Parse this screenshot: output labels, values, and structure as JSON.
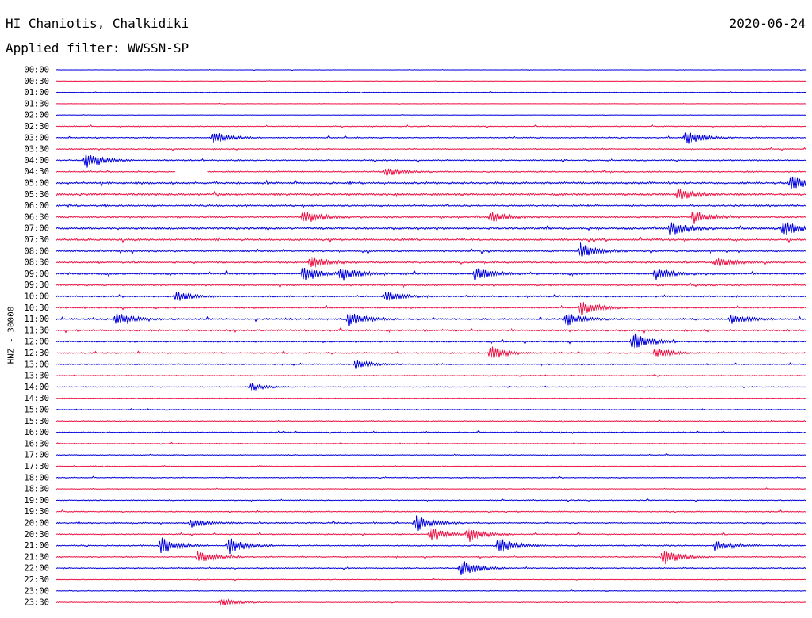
{
  "header": {
    "station": "HI Chaniotis, Chalkidiki",
    "filter": "Applied filter: WWSSN-SP",
    "date": "2020-06-24"
  },
  "colors": {
    "trace_a": "#0000dd",
    "trace_b": "#ee1144",
    "text": "#000000"
  },
  "chart_data": {
    "type": "line",
    "title": "HI Chaniotis, Chalkidiki",
    "subtitle": "Applied filter: WWSSN-SP",
    "ylabel": "HNZ - 30000",
    "xlabel": "",
    "grid": false,
    "legend": "none",
    "trace_colors": [
      "#0000dd",
      "#ee1144"
    ],
    "rows": [
      "00:00",
      "00:30",
      "01:00",
      "01:30",
      "02:00",
      "02:30",
      "03:00",
      "03:30",
      "04:00",
      "04:30",
      "05:00",
      "05:30",
      "06:00",
      "06:30",
      "07:00",
      "07:30",
      "08:00",
      "08:30",
      "09:00",
      "09:30",
      "10:00",
      "10:30",
      "11:00",
      "11:30",
      "12:00",
      "12:30",
      "13:00",
      "13:30",
      "14:00",
      "14:30",
      "15:00",
      "15:30",
      "16:00",
      "16:30",
      "17:00",
      "17:30",
      "18:00",
      "18:30",
      "19:00",
      "19:30",
      "20:00",
      "20:30",
      "21:00",
      "21:30",
      "22:00",
      "22:30",
      "23:00",
      "23:30"
    ],
    "row_noise_level": [
      0.1,
      0.1,
      0.15,
      0.1,
      0.1,
      0.25,
      0.3,
      0.3,
      0.35,
      0.35,
      0.55,
      0.6,
      0.45,
      0.5,
      0.6,
      0.5,
      0.45,
      0.45,
      0.5,
      0.45,
      0.4,
      0.4,
      0.45,
      0.45,
      0.4,
      0.35,
      0.3,
      0.25,
      0.2,
      0.2,
      0.25,
      0.25,
      0.25,
      0.2,
      0.2,
      0.2,
      0.25,
      0.2,
      0.25,
      0.3,
      0.35,
      0.3,
      0.35,
      0.3,
      0.3,
      0.2,
      0.2,
      0.2
    ],
    "events": [
      {
        "row": 6,
        "t": 0.21,
        "amp": 0.7
      },
      {
        "row": 6,
        "t": 0.84,
        "amp": 0.9
      },
      {
        "row": 8,
        "t": 0.04,
        "amp": 0.9
      },
      {
        "row": 9,
        "t": 0.44,
        "amp": 0.5
      },
      {
        "row": 10,
        "t": 0.98,
        "amp": 0.9
      },
      {
        "row": 11,
        "t": 0.83,
        "amp": 0.7
      },
      {
        "row": 13,
        "t": 0.33,
        "amp": 0.8
      },
      {
        "row": 13,
        "t": 0.58,
        "amp": 0.6
      },
      {
        "row": 13,
        "t": 0.85,
        "amp": 0.8
      },
      {
        "row": 14,
        "t": 0.82,
        "amp": 0.8
      },
      {
        "row": 14,
        "t": 0.97,
        "amp": 0.9
      },
      {
        "row": 16,
        "t": 0.7,
        "amp": 0.9
      },
      {
        "row": 17,
        "t": 0.34,
        "amp": 0.7
      },
      {
        "row": 17,
        "t": 0.88,
        "amp": 0.6
      },
      {
        "row": 18,
        "t": 0.33,
        "amp": 0.9
      },
      {
        "row": 18,
        "t": 0.38,
        "amp": 0.9
      },
      {
        "row": 18,
        "t": 0.56,
        "amp": 0.8
      },
      {
        "row": 18,
        "t": 0.8,
        "amp": 0.7
      },
      {
        "row": 20,
        "t": 0.16,
        "amp": 0.6
      },
      {
        "row": 20,
        "t": 0.44,
        "amp": 0.6
      },
      {
        "row": 21,
        "t": 0.7,
        "amp": 0.9
      },
      {
        "row": 22,
        "t": 0.08,
        "amp": 0.7
      },
      {
        "row": 22,
        "t": 0.39,
        "amp": 0.8
      },
      {
        "row": 22,
        "t": 0.68,
        "amp": 0.8
      },
      {
        "row": 22,
        "t": 0.9,
        "amp": 0.7
      },
      {
        "row": 24,
        "t": 0.77,
        "amp": 1.0
      },
      {
        "row": 25,
        "t": 0.58,
        "amp": 0.8
      },
      {
        "row": 25,
        "t": 0.8,
        "amp": 0.6
      },
      {
        "row": 26,
        "t": 0.4,
        "amp": 0.5
      },
      {
        "row": 28,
        "t": 0.26,
        "amp": 0.4
      },
      {
        "row": 40,
        "t": 0.48,
        "amp": 1.0
      },
      {
        "row": 40,
        "t": 0.18,
        "amp": 0.5
      },
      {
        "row": 41,
        "t": 0.5,
        "amp": 0.8
      },
      {
        "row": 41,
        "t": 0.55,
        "amp": 0.9
      },
      {
        "row": 42,
        "t": 0.14,
        "amp": 1.0
      },
      {
        "row": 42,
        "t": 0.23,
        "amp": 1.0
      },
      {
        "row": 42,
        "t": 0.59,
        "amp": 1.0
      },
      {
        "row": 42,
        "t": 0.88,
        "amp": 0.6
      },
      {
        "row": 43,
        "t": 0.19,
        "amp": 0.8
      },
      {
        "row": 43,
        "t": 0.81,
        "amp": 1.0
      },
      {
        "row": 44,
        "t": 0.54,
        "amp": 1.0
      },
      {
        "row": 47,
        "t": 0.22,
        "amp": 0.5
      }
    ],
    "gaps": [
      {
        "row": 9,
        "t0": 0.16,
        "t1": 0.2
      }
    ]
  }
}
